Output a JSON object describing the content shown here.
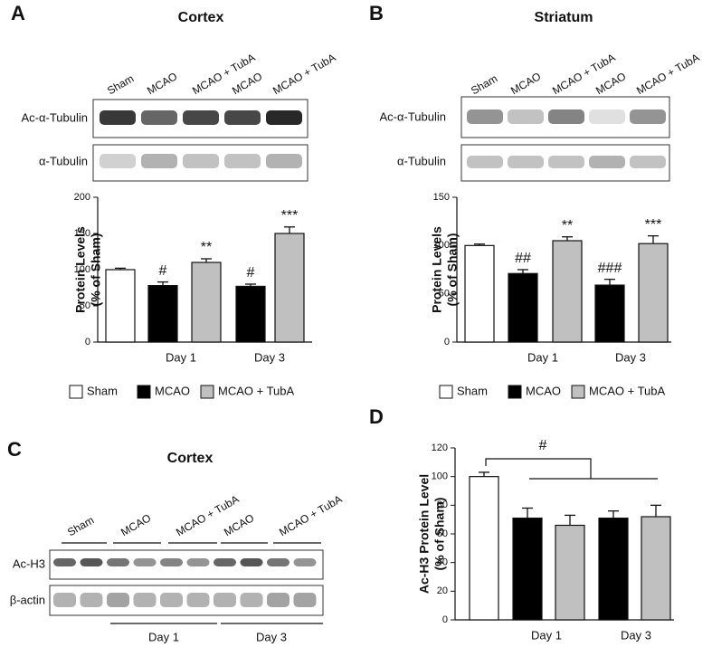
{
  "panel_labels": [
    "A",
    "B",
    "C",
    "D"
  ],
  "blot_a": {
    "lanes": [
      "Sham",
      "MCAO",
      "MCAO + TubA",
      "MCAO",
      "MCAO + TubA"
    ],
    "rows": [
      "Ac-α-Tubulin",
      "α-Tubulin"
    ]
  },
  "blot_b": {
    "lanes": [
      "Sham",
      "MCAO",
      "MCAO + TubA",
      "MCAO",
      "MCAO + TubA"
    ],
    "rows": [
      "Ac-α-Tubulin",
      "α-Tubulin"
    ]
  },
  "blot_c": {
    "title": "Cortex",
    "lanes": [
      "Sham",
      "MCAO",
      "MCAO + TubA",
      "MCAO",
      "MCAO + TubA"
    ],
    "rows": [
      "Ac-H3",
      "β-actin"
    ],
    "days": [
      "Day 1",
      "Day 3"
    ]
  },
  "chart_data": [
    {
      "type": "bar",
      "title": "Cortex",
      "y_label": [
        "Protein Levels",
        "(% of Sham)"
      ],
      "values": [
        100,
        78,
        110,
        77,
        150
      ],
      "errors": [
        2,
        5,
        5,
        3,
        9
      ],
      "colors": [
        "#ffffff",
        "#000000",
        "#c0c0c0",
        "#000000",
        "#c0c0c0"
      ],
      "annotations": [
        null,
        "#",
        "**",
        "#",
        "***"
      ],
      "group_labels": [
        "Day 1",
        "Day 3"
      ],
      "ylim": [
        0,
        200
      ],
      "yticks": [
        0,
        50,
        100,
        150,
        200
      ],
      "legend": [
        {
          "name": "Sham",
          "color": "#ffffff"
        },
        {
          "name": "MCAO",
          "color": "#000000"
        },
        {
          "name": "MCAO + TubA",
          "color": "#c0c0c0"
        }
      ]
    },
    {
      "type": "bar",
      "title": "Striatum",
      "y_label": [
        "Protein Levels",
        "(% of Sham)"
      ],
      "values": [
        100,
        71,
        105,
        59,
        102
      ],
      "errors": [
        1.5,
        4,
        4,
        6,
        8
      ],
      "colors": [
        "#ffffff",
        "#000000",
        "#c0c0c0",
        "#000000",
        "#c0c0c0"
      ],
      "annotations": [
        null,
        "##",
        "**",
        "###",
        "***"
      ],
      "group_labels": [
        "Day 1",
        "Day 3"
      ],
      "ylim": [
        0,
        150
      ],
      "yticks": [
        0,
        50,
        100,
        150
      ],
      "legend": [
        {
          "name": "Sham",
          "color": "#ffffff"
        },
        {
          "name": "MCAO",
          "color": "#000000"
        },
        {
          "name": "MCAO + TubA",
          "color": "#c0c0c0"
        }
      ]
    },
    {
      "type": "bar",
      "y_label": [
        "Ac-H3 Protein Level",
        "(% of Sham)"
      ],
      "values": [
        100,
        71,
        66,
        71,
        72
      ],
      "errors": [
        3,
        7,
        7,
        5,
        8
      ],
      "colors": [
        "#ffffff",
        "#000000",
        "#c0c0c0",
        "#000000",
        "#c0c0c0"
      ],
      "bracket_label": "#",
      "group_labels": [
        "Day 1",
        "Day 3"
      ],
      "ylim": [
        0,
        120
      ],
      "yticks": [
        0,
        20,
        40,
        60,
        80,
        100,
        120
      ]
    }
  ]
}
